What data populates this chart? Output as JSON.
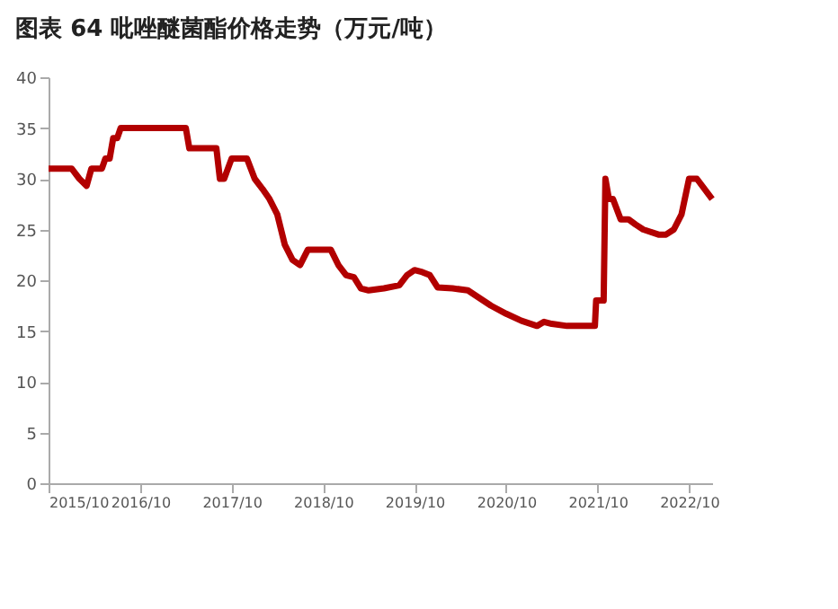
{
  "chart_data": {
    "type": "line",
    "title": "图表 64  吡唑醚菌酯价格走势（万元/吨）",
    "x": [
      "2015-10",
      "2016-01",
      "2016-02",
      "2016-03",
      "2016-03-20",
      "2016-05",
      "2016-05-15",
      "2016-06",
      "2016-06-15",
      "2016-07",
      "2016-07-15",
      "2017-04",
      "2017-04-15",
      "2017-08",
      "2017-08-15",
      "2017-09",
      "2017-10",
      "2017-12",
      "2018-01",
      "2018-02",
      "2018-03",
      "2018-04",
      "2018-05",
      "2018-06",
      "2018-07",
      "2018-08",
      "2018-11",
      "2018-12",
      "2019-01",
      "2019-02",
      "2019-03",
      "2019-04",
      "2019-06",
      "2019-08",
      "2019-09",
      "2019-10",
      "2019-11",
      "2019-12",
      "2020-01",
      "2020-03",
      "2020-05",
      "2020-06",
      "2020-08",
      "2020-10",
      "2020-12",
      "2021-02",
      "2021-03",
      "2021-04",
      "2021-06",
      "2021-09-20",
      "2021-09-25",
      "2021-10-25",
      "2021-11-01",
      "2021-11-15",
      "2021-12",
      "2022-01",
      "2022-02",
      "2022-03",
      "2022-04",
      "2022-06",
      "2022-07",
      "2022-08",
      "2022-09",
      "2022-10",
      "2022-11",
      "2023-01"
    ],
    "series": [
      {
        "color": "#b20000",
        "values": [
          31,
          31,
          30,
          29.3,
          31,
          31,
          32,
          32,
          34,
          34,
          35,
          35,
          33,
          33,
          30,
          30,
          32,
          32,
          30,
          29,
          28,
          26.5,
          23.5,
          22,
          21.5,
          23,
          23,
          21.5,
          20.5,
          20.3,
          19.2,
          19,
          19.2,
          19.5,
          20.5,
          21,
          20.8,
          20.5,
          19.3,
          19.2,
          19,
          18.5,
          17.5,
          16.7,
          16,
          15.5,
          15.9,
          15.7,
          15.5,
          15.5,
          18,
          18,
          30,
          28,
          28,
          26,
          26,
          25.5,
          25,
          24.5,
          24.5,
          25,
          26.5,
          30,
          30,
          28
        ]
      }
    ],
    "xlim": [
      "2015-10",
      "2023-01"
    ],
    "xticks": [
      {
        "value": "2015-10",
        "label": "2015/10"
      },
      {
        "value": "2016-10",
        "label": "2016/10"
      },
      {
        "value": "2017-10",
        "label": "2017/10"
      },
      {
        "value": "2018-10",
        "label": "2018/10"
      },
      {
        "value": "2019-10",
        "label": "2019/10"
      },
      {
        "value": "2020-10",
        "label": "2020/10"
      },
      {
        "value": "2021-10",
        "label": "2021/10"
      },
      {
        "value": "2022-10",
        "label": "2022/10"
      }
    ],
    "ylim": [
      0,
      40
    ],
    "yticks": [
      0,
      5,
      10,
      15,
      20,
      25,
      30,
      35,
      40
    ],
    "grid": false
  }
}
